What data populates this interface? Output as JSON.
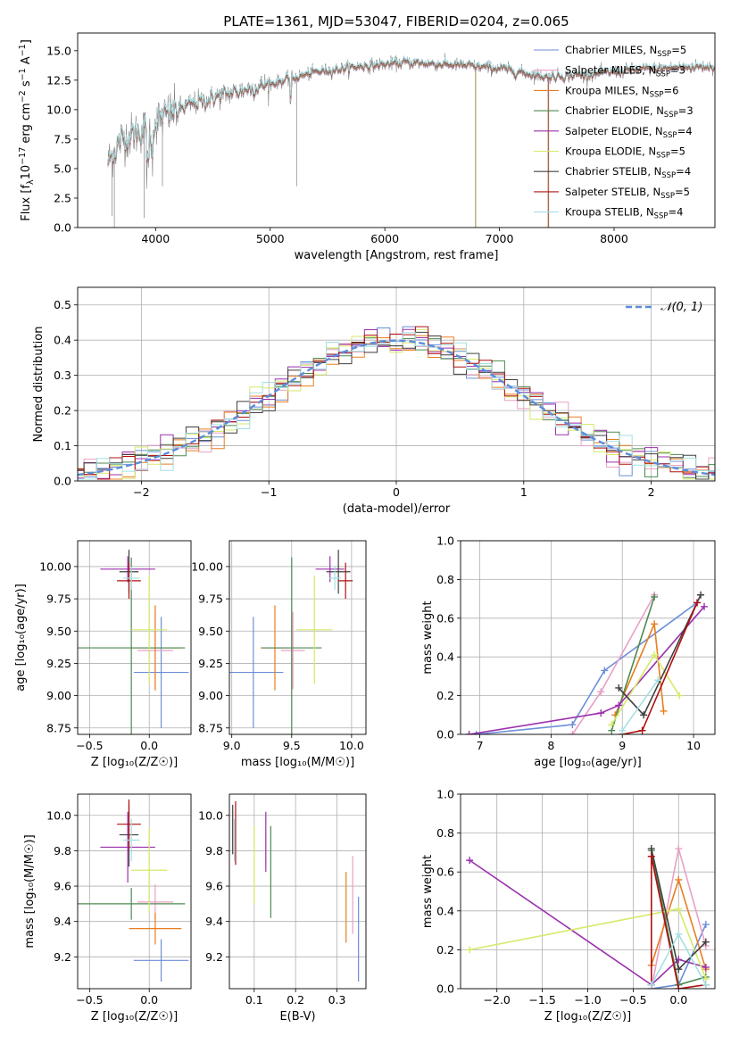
{
  "colors": {
    "Chabrier MILES": "#6c8ed8",
    "Salpeter MILES": "#e8a0c4",
    "Kroupa MILES": "#e87e20",
    "Chabrier ELODIE": "#4e8a52",
    "Salpeter ELODIE": "#9b2fae",
    "Kroupa ELODIE": "#d5ea6a",
    "Chabrier STELIB": "#404040",
    "Salpeter STELIB": "#b01010",
    "Kroupa STELIB": "#a4dfe4"
  },
  "chart_data": [
    {
      "id": "spectrum",
      "type": "line",
      "title": "PLATE=1361, MJD=53047, FIBERID=0204, z=0.065",
      "xlabel": "wavelength [Angstrom, rest frame]",
      "ylabel": "Flux [f_λ10^{-17} erg cm^{-2} s^{-1} A^{-1}]",
      "ylabel_parts": {
        "a": "Flux [f",
        "sub": "λ",
        "b": "10",
        "sup1": "−17",
        "c": " erg cm",
        "sup2": "−2",
        "d": " s",
        "sup3": "−1",
        "e": " A",
        "sup4": "−1",
        "f": "]"
      },
      "xlim": [
        3320,
        8880
      ],
      "ylim": [
        0,
        16.5
      ],
      "xticks": [
        4000,
        5000,
        6000,
        7000,
        8000
      ],
      "yticks": [
        0.0,
        2.5,
        5.0,
        7.5,
        10.0,
        12.5,
        15.0
      ],
      "legend_position": "top-right",
      "series": [
        {
          "name": "Chabrier MILES",
          "nssp": "5"
        },
        {
          "name": "Salpeter MILES",
          "nssp": "3"
        },
        {
          "name": "Kroupa MILES",
          "nssp": "6"
        },
        {
          "name": "Chabrier ELODIE",
          "nssp": "3"
        },
        {
          "name": "Salpeter ELODIE",
          "nssp": "4"
        },
        {
          "name": "Kroupa ELODIE",
          "nssp": "5"
        },
        {
          "name": "Chabrier STELIB",
          "nssp": "4"
        },
        {
          "name": "Salpeter STELIB",
          "nssp": "5"
        },
        {
          "name": "Kroupa STELIB",
          "nssp": "4"
        }
      ],
      "legend_nssp_label": "N",
      "legend_nssp_sub": "SSP",
      "continuum": {
        "x": [
          3580,
          3700,
          3900,
          4100,
          4300,
          4600,
          5000,
          5400,
          5800,
          6200,
          6600,
          7000,
          7400,
          7800,
          8200,
          8600,
          8880
        ],
        "y": [
          5.5,
          7.5,
          8.3,
          9.6,
          10.4,
          11.3,
          12.2,
          13.2,
          13.7,
          14.0,
          13.8,
          13.5,
          12.8,
          13.0,
          13.4,
          13.6,
          13.7
        ]
      },
      "noise_range": [
        3580,
        7430
      ]
    },
    {
      "id": "residuals",
      "type": "histogram",
      "xlabel": "(data-model)/error",
      "ylabel": "Normed distribution",
      "xlim": [
        -2.5,
        2.5
      ],
      "ylim": [
        0,
        0.55
      ],
      "xticks": [
        -2,
        -1,
        0,
        1,
        2
      ],
      "yticks": [
        0.0,
        0.1,
        0.2,
        0.3,
        0.4,
        0.5
      ],
      "bin_width": 0.1,
      "reference_label": "𝒩(0, 1)",
      "legend_position": "top-right"
    },
    {
      "id": "age-vs-Z",
      "type": "errorbar",
      "xlabel": "Z [log₁₀(Z/Z☉)]",
      "ylabel": "age  [log₁₀(age/yr)]",
      "xlim": [
        -0.6,
        0.35
      ],
      "ylim": [
        8.7,
        10.2
      ],
      "xticks": [
        -0.5,
        0.0
      ],
      "yticks": [
        8.75,
        9.0,
        9.25,
        9.5,
        9.75,
        10.0
      ],
      "points": [
        {
          "model": "Chabrier MILES",
          "x": 0.1,
          "y": 9.18,
          "xerr": 0.23,
          "yerr": 0.43
        },
        {
          "model": "Salpeter MILES",
          "x": 0.05,
          "y": 9.35,
          "xerr": 0.15,
          "yerr": 0.3
        },
        {
          "model": "Kroupa MILES",
          "x": 0.05,
          "y": 9.37,
          "xerr": 0.22,
          "yerr": 0.33
        },
        {
          "model": "Chabrier ELODIE",
          "x": -0.15,
          "y": 9.37,
          "xerr": 0.45,
          "yerr": 0.7
        },
        {
          "model": "Salpeter ELODIE",
          "x": -0.18,
          "y": 9.98,
          "xerr": 0.23,
          "yerr": 0.1
        },
        {
          "model": "Kroupa ELODIE",
          "x": 0.0,
          "y": 9.51,
          "xerr": 0.15,
          "yerr": 0.42
        },
        {
          "model": "Chabrier STELIB",
          "x": -0.17,
          "y": 9.96,
          "xerr": 0.08,
          "yerr": 0.17
        },
        {
          "model": "Salpeter STELIB",
          "x": -0.17,
          "y": 9.89,
          "xerr": 0.1,
          "yerr": 0.14
        },
        {
          "model": "Kroupa STELIB",
          "x": -0.15,
          "y": 9.91,
          "xerr": 0.07,
          "yerr": 0.09
        }
      ]
    },
    {
      "id": "age-vs-mass",
      "type": "errorbar",
      "xlabel": "mass [log₁₀(M/M☉)]",
      "ylabel": "",
      "xlim": [
        8.98,
        10.12
      ],
      "ylim": [
        8.7,
        10.2
      ],
      "xticks": [
        9.0,
        9.5,
        10.0
      ],
      "yticks": [
        8.75,
        9.0,
        9.25,
        9.5,
        9.75,
        10.0
      ],
      "points": [
        {
          "model": "Chabrier MILES",
          "x": 9.18,
          "y": 9.18,
          "xerr": 0.25,
          "yerr": 0.43
        },
        {
          "model": "Salpeter MILES",
          "x": 9.51,
          "y": 9.35,
          "xerr": 0.1,
          "yerr": 0.3
        },
        {
          "model": "Kroupa MILES",
          "x": 9.36,
          "y": 9.37,
          "xerr": 0.12,
          "yerr": 0.33
        },
        {
          "model": "Chabrier ELODIE",
          "x": 9.5,
          "y": 9.37,
          "xerr": 0.25,
          "yerr": 0.7
        },
        {
          "model": "Salpeter ELODIE",
          "x": 9.82,
          "y": 9.98,
          "xerr": 0.12,
          "yerr": 0.1
        },
        {
          "model": "Kroupa ELODIE",
          "x": 9.69,
          "y": 9.51,
          "xerr": 0.15,
          "yerr": 0.42
        },
        {
          "model": "Chabrier STELIB",
          "x": 9.89,
          "y": 9.96,
          "xerr": 0.1,
          "yerr": 0.17
        },
        {
          "model": "Salpeter STELIB",
          "x": 9.95,
          "y": 9.89,
          "xerr": 0.06,
          "yerr": 0.14
        },
        {
          "model": "Kroupa STELIB",
          "x": 9.86,
          "y": 9.91,
          "xerr": 0.05,
          "yerr": 0.09
        }
      ]
    },
    {
      "id": "mass-vs-Z",
      "type": "errorbar",
      "xlabel": "Z [log₁₀(Z/Z☉)]",
      "ylabel": "mass [log₁₀(M/M☉)]",
      "xlim": [
        -0.6,
        0.35
      ],
      "ylim": [
        9.02,
        10.12
      ],
      "xticks": [
        -0.5,
        0.0
      ],
      "yticks": [
        9.2,
        9.4,
        9.6,
        9.8,
        10.0
      ],
      "points": [
        {
          "model": "Chabrier MILES",
          "x": 0.1,
          "y": 9.18,
          "xerr": 0.23,
          "yerr": 0.12
        },
        {
          "model": "Salpeter MILES",
          "x": 0.05,
          "y": 9.51,
          "xerr": 0.15,
          "yerr": 0.1
        },
        {
          "model": "Kroupa MILES",
          "x": 0.05,
          "y": 9.36,
          "xerr": 0.22,
          "yerr": 0.09
        },
        {
          "model": "Chabrier ELODIE",
          "x": -0.15,
          "y": 9.5,
          "xerr": 0.45,
          "yerr": 0.09
        },
        {
          "model": "Salpeter ELODIE",
          "x": -0.18,
          "y": 9.82,
          "xerr": 0.23,
          "yerr": 0.2
        },
        {
          "model": "Kroupa ELODIE",
          "x": 0.0,
          "y": 9.69,
          "xerr": 0.15,
          "yerr": 0.24
        },
        {
          "model": "Chabrier STELIB",
          "x": -0.17,
          "y": 9.89,
          "xerr": 0.08,
          "yerr": 0.18
        },
        {
          "model": "Salpeter STELIB",
          "x": -0.17,
          "y": 9.95,
          "xerr": 0.1,
          "yerr": 0.14
        },
        {
          "model": "Kroupa STELIB",
          "x": -0.15,
          "y": 9.86,
          "xerr": 0.07,
          "yerr": 0.12
        }
      ]
    },
    {
      "id": "mass-vs-EBV",
      "type": "errorbar",
      "xlabel": "E(B-V)",
      "ylabel": "",
      "xlim": [
        0.04,
        0.37
      ],
      "ylim": [
        9.02,
        10.12
      ],
      "xticks": [
        0.1,
        0.2,
        0.3
      ],
      "yticks": [
        9.2,
        9.4,
        9.6,
        9.8,
        10.0
      ],
      "points": [
        {
          "model": "Chabrier MILES",
          "x": 0.352,
          "y": 9.3,
          "xerr": 0,
          "yerr": 0.24
        },
        {
          "model": "Salpeter MILES",
          "x": 0.338,
          "y": 9.55,
          "xerr": 0,
          "yerr": 0.22
        },
        {
          "model": "Kroupa MILES",
          "x": 0.322,
          "y": 9.48,
          "xerr": 0,
          "yerr": 0.2
        },
        {
          "model": "Chabrier ELODIE",
          "x": 0.14,
          "y": 9.68,
          "xerr": 0,
          "yerr": 0.26
        },
        {
          "model": "Salpeter ELODIE",
          "x": 0.128,
          "y": 9.85,
          "xerr": 0,
          "yerr": 0.17
        },
        {
          "model": "Kroupa ELODIE",
          "x": 0.1,
          "y": 9.72,
          "xerr": 0,
          "yerr": 0.22
        },
        {
          "model": "Chabrier STELIB",
          "x": 0.048,
          "y": 9.92,
          "xerr": 0,
          "yerr": 0.14
        },
        {
          "model": "Salpeter STELIB",
          "x": 0.055,
          "y": 9.9,
          "xerr": 0,
          "yerr": 0.18
        },
        {
          "model": "Kroupa STELIB",
          "x": 0.052,
          "y": 9.86,
          "xerr": 0,
          "yerr": 0.12
        }
      ]
    },
    {
      "id": "weight-vs-age",
      "type": "line",
      "xlabel": "age  [log₁₀(age/yr)]",
      "ylabel": "mass weight",
      "xlim": [
        6.73,
        10.3
      ],
      "ylim": [
        0,
        1
      ],
      "xticks": [
        7,
        8,
        9,
        10
      ],
      "yticks": [
        0.0,
        0.2,
        0.4,
        0.6,
        0.8,
        1.0
      ],
      "series": [
        {
          "model": "Chabrier MILES",
          "x": [
            6.95,
            8.3,
            8.75,
            10.05
          ],
          "y": [
            0.0,
            0.05,
            0.33,
            0.68
          ]
        },
        {
          "model": "Salpeter MILES",
          "x": [
            8.3,
            8.7,
            9.45
          ],
          "y": [
            0.0,
            0.22,
            0.72
          ]
        },
        {
          "model": "Kroupa MILES",
          "x": [
            8.9,
            9.45,
            9.58
          ],
          "y": [
            0.1,
            0.57,
            0.12
          ]
        },
        {
          "model": "Chabrier ELODIE",
          "x": [
            8.85,
            9.45
          ],
          "y": [
            0.02,
            0.71
          ]
        },
        {
          "model": "Salpeter ELODIE",
          "x": [
            6.85,
            8.7,
            8.95,
            10.15
          ],
          "y": [
            0.0,
            0.11,
            0.15,
            0.66
          ]
        },
        {
          "model": "Kroupa ELODIE",
          "x": [
            8.85,
            9.45,
            9.8
          ],
          "y": [
            0.05,
            0.41,
            0.2
          ]
        },
        {
          "model": "Chabrier STELIB",
          "x": [
            8.95,
            9.3,
            10.1
          ],
          "y": [
            0.24,
            0.1,
            0.72
          ]
        },
        {
          "model": "Salpeter STELIB",
          "x": [
            9.0,
            9.28,
            10.05
          ],
          "y": [
            0.0,
            0.02,
            0.68
          ]
        },
        {
          "model": "Kroupa STELIB",
          "x": [
            9.0,
            9.5
          ],
          "y": [
            0.02,
            0.28
          ]
        }
      ]
    },
    {
      "id": "weight-vs-Z",
      "type": "line",
      "xlabel": "Z [log₁₀(Z/Z☉)]",
      "ylabel": "mass weight",
      "xlim": [
        -2.4,
        0.4
      ],
      "ylim": [
        0,
        1
      ],
      "xticks": [
        -2.0,
        -1.5,
        -1.0,
        -0.5,
        0.0
      ],
      "yticks": [
        0.0,
        0.2,
        0.4,
        0.6,
        0.8,
        1.0
      ],
      "series": [
        {
          "model": "Chabrier MILES",
          "x": [
            -0.3,
            0.0,
            0.3
          ],
          "y": [
            0.0,
            0.02,
            0.33
          ]
        },
        {
          "model": "Salpeter MILES",
          "x": [
            -0.3,
            0.0,
            0.3
          ],
          "y": [
            0.0,
            0.72,
            0.22
          ]
        },
        {
          "model": "Kroupa MILES",
          "x": [
            -0.3,
            0.0,
            0.3
          ],
          "y": [
            0.12,
            0.56,
            0.1
          ]
        },
        {
          "model": "Chabrier ELODIE",
          "x": [
            -0.3,
            0.0,
            0.3
          ],
          "y": [
            0.71,
            0.02,
            0.06
          ]
        },
        {
          "model": "Salpeter ELODIE",
          "x": [
            -2.3,
            -0.3,
            0.0,
            0.3
          ],
          "y": [
            0.66,
            0.02,
            0.15,
            0.11
          ]
        },
        {
          "model": "Kroupa ELODIE",
          "x": [
            -2.3,
            0.0,
            0.3
          ],
          "y": [
            0.2,
            0.41,
            0.05
          ]
        },
        {
          "model": "Chabrier STELIB",
          "x": [
            -0.3,
            0.0,
            0.3
          ],
          "y": [
            0.72,
            0.1,
            0.24
          ]
        },
        {
          "model": "Salpeter STELIB",
          "x": [
            -0.3,
            -0.3,
            0.0,
            0.3
          ],
          "y": [
            0.02,
            0.68,
            0.0,
            0.02
          ]
        },
        {
          "model": "Kroupa STELIB",
          "x": [
            -0.3,
            0.0,
            0.3
          ],
          "y": [
            0.02,
            0.28,
            0.02
          ]
        }
      ]
    }
  ]
}
